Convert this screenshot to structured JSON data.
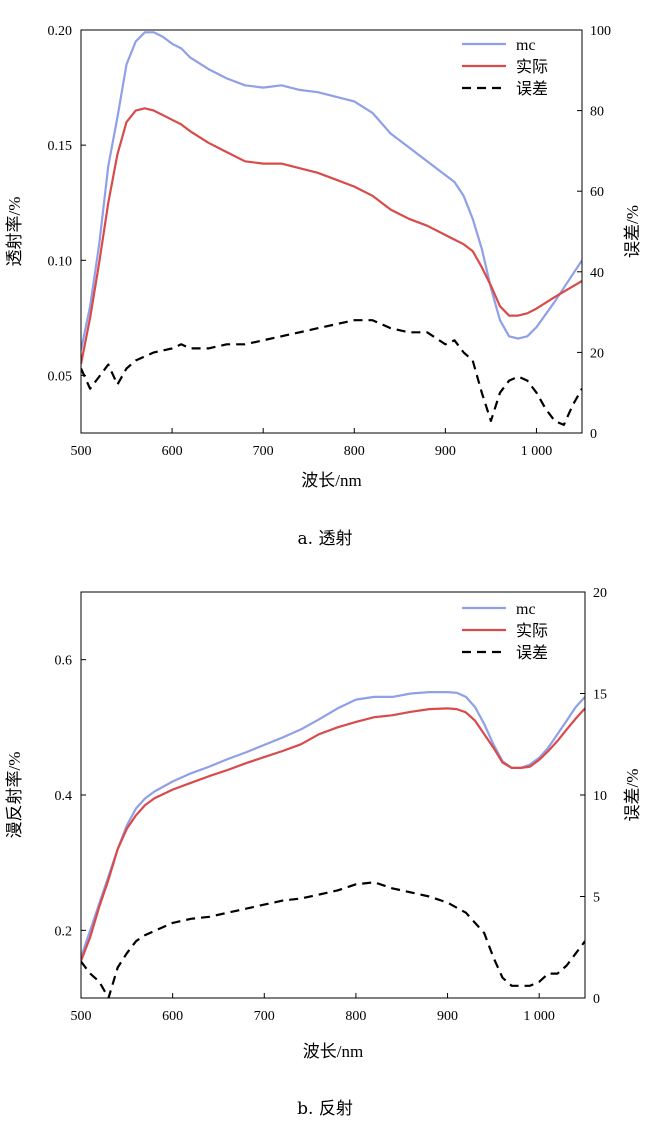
{
  "colors": {
    "mc": "#8f9fe8",
    "actual": "#d94a4a",
    "error": "#000000"
  },
  "chart_data": [
    {
      "type": "line",
      "caption": "a. 透射",
      "xlabel": "波长/nm",
      "ylabel": "透射率/%",
      "y2label": "误差/%",
      "xlim": [
        500,
        1050
      ],
      "ylim": [
        0.025,
        0.2
      ],
      "y2lim": [
        0,
        100
      ],
      "xticks": [
        500,
        600,
        700,
        800,
        900,
        1000
      ],
      "xtick_labels": [
        "500",
        "600",
        "700",
        "800",
        "900",
        "1 000"
      ],
      "yticks": [
        0.05,
        0.1,
        0.15,
        0.2
      ],
      "ytick_labels": [
        "0.05",
        "0.10",
        "0.15",
        "0.20"
      ],
      "y2ticks": [
        0,
        20,
        40,
        60,
        80,
        100
      ],
      "y2tick_labels": [
        "0",
        "20",
        "40",
        "60",
        "80",
        "100"
      ],
      "legend_position": "top-right",
      "series": [
        {
          "name": "mc",
          "axis": "left",
          "color_key": "mc",
          "style": "solid",
          "x": [
            500,
            510,
            520,
            530,
            540,
            550,
            560,
            570,
            580,
            590,
            600,
            610,
            620,
            640,
            660,
            680,
            700,
            720,
            740,
            760,
            780,
            800,
            820,
            840,
            860,
            880,
            900,
            910,
            920,
            930,
            940,
            950,
            960,
            970,
            980,
            990,
            1000,
            1020,
            1050
          ],
          "y": [
            0.061,
            0.08,
            0.107,
            0.141,
            0.162,
            0.185,
            0.195,
            0.199,
            0.199,
            0.197,
            0.194,
            0.192,
            0.188,
            0.183,
            0.179,
            0.176,
            0.175,
            0.176,
            0.174,
            0.173,
            0.171,
            0.169,
            0.164,
            0.155,
            0.149,
            0.143,
            0.137,
            0.134,
            0.128,
            0.118,
            0.105,
            0.088,
            0.074,
            0.067,
            0.066,
            0.067,
            0.071,
            0.082,
            0.1
          ]
        },
        {
          "name": "实际",
          "axis": "left",
          "color_key": "actual",
          "style": "solid",
          "x": [
            500,
            510,
            520,
            530,
            540,
            550,
            560,
            570,
            580,
            590,
            600,
            610,
            620,
            640,
            660,
            680,
            700,
            720,
            740,
            760,
            780,
            800,
            820,
            840,
            860,
            880,
            900,
            910,
            920,
            930,
            940,
            950,
            960,
            970,
            980,
            990,
            1000,
            1020,
            1050
          ],
          "y": [
            0.055,
            0.075,
            0.099,
            0.125,
            0.146,
            0.16,
            0.165,
            0.166,
            0.165,
            0.163,
            0.161,
            0.159,
            0.156,
            0.151,
            0.147,
            0.143,
            0.142,
            0.142,
            0.14,
            0.138,
            0.135,
            0.132,
            0.128,
            0.122,
            0.118,
            0.115,
            0.111,
            0.109,
            0.107,
            0.104,
            0.097,
            0.089,
            0.08,
            0.076,
            0.076,
            0.077,
            0.079,
            0.084,
            0.091
          ]
        },
        {
          "name": "误差",
          "axis": "right",
          "color_key": "error",
          "style": "dashed",
          "x": [
            500,
            510,
            520,
            530,
            540,
            550,
            560,
            570,
            580,
            600,
            610,
            620,
            640,
            660,
            680,
            700,
            720,
            740,
            760,
            780,
            800,
            820,
            840,
            860,
            880,
            900,
            910,
            920,
            930,
            940,
            950,
            960,
            970,
            980,
            990,
            1000,
            1010,
            1020,
            1030,
            1040,
            1050
          ],
          "y": [
            16,
            11,
            14,
            17,
            12,
            16,
            18,
            19,
            20,
            21,
            22,
            21,
            21,
            22,
            22,
            23,
            24,
            25,
            26,
            27,
            28,
            28,
            26,
            25,
            25,
            22,
            23,
            20,
            18,
            10,
            3,
            10,
            13,
            14,
            13,
            10,
            6,
            3,
            2,
            7,
            11
          ]
        }
      ]
    },
    {
      "type": "line",
      "caption": "b. 反射",
      "xlabel": "波长/nm",
      "ylabel": "漫反射率/%",
      "y2label": "误差/%",
      "xlim": [
        500,
        1050
      ],
      "ylim": [
        0.1,
        0.7
      ],
      "y2lim": [
        0,
        20
      ],
      "xticks": [
        500,
        600,
        700,
        800,
        900,
        1000
      ],
      "xtick_labels": [
        "500",
        "600",
        "700",
        "800",
        "900",
        "1 000"
      ],
      "yticks": [
        0.2,
        0.4,
        0.6
      ],
      "ytick_labels": [
        "0.2",
        "0.4",
        "0.6"
      ],
      "y2ticks": [
        0,
        5,
        10,
        15,
        20
      ],
      "y2tick_labels": [
        "0",
        "5",
        "10",
        "15",
        "20"
      ],
      "legend_position": "top-right",
      "series": [
        {
          "name": "mc",
          "axis": "left",
          "color_key": "mc",
          "style": "solid",
          "x": [
            500,
            510,
            520,
            530,
            540,
            550,
            560,
            570,
            580,
            600,
            620,
            640,
            660,
            680,
            700,
            720,
            740,
            760,
            780,
            800,
            820,
            840,
            860,
            880,
            900,
            910,
            920,
            930,
            940,
            950,
            960,
            970,
            980,
            990,
            1000,
            1010,
            1020,
            1030,
            1040,
            1050
          ],
          "y": [
            0.16,
            0.2,
            0.24,
            0.28,
            0.32,
            0.355,
            0.38,
            0.395,
            0.405,
            0.42,
            0.432,
            0.442,
            0.453,
            0.463,
            0.474,
            0.485,
            0.497,
            0.512,
            0.528,
            0.541,
            0.545,
            0.545,
            0.55,
            0.552,
            0.552,
            0.551,
            0.545,
            0.53,
            0.505,
            0.475,
            0.45,
            0.44,
            0.44,
            0.445,
            0.455,
            0.47,
            0.49,
            0.51,
            0.53,
            0.545
          ]
        },
        {
          "name": "实际",
          "axis": "left",
          "color_key": "actual",
          "style": "solid",
          "x": [
            500,
            510,
            520,
            530,
            540,
            550,
            560,
            570,
            580,
            600,
            620,
            640,
            660,
            680,
            700,
            720,
            740,
            760,
            780,
            800,
            820,
            840,
            860,
            880,
            900,
            910,
            920,
            930,
            940,
            950,
            960,
            970,
            980,
            990,
            1000,
            1010,
            1020,
            1030,
            1040,
            1050
          ],
          "y": [
            0.155,
            0.19,
            0.235,
            0.275,
            0.32,
            0.35,
            0.37,
            0.385,
            0.395,
            0.408,
            0.418,
            0.428,
            0.437,
            0.447,
            0.456,
            0.465,
            0.475,
            0.49,
            0.5,
            0.508,
            0.515,
            0.518,
            0.523,
            0.527,
            0.528,
            0.527,
            0.522,
            0.51,
            0.49,
            0.47,
            0.448,
            0.44,
            0.44,
            0.442,
            0.452,
            0.465,
            0.48,
            0.497,
            0.513,
            0.528
          ]
        },
        {
          "name": "误差",
          "axis": "right",
          "color_key": "error",
          "style": "dashed",
          "x": [
            500,
            510,
            520,
            530,
            540,
            550,
            560,
            570,
            580,
            600,
            620,
            640,
            660,
            680,
            700,
            720,
            740,
            760,
            780,
            800,
            820,
            840,
            860,
            880,
            900,
            920,
            940,
            950,
            960,
            970,
            980,
            990,
            1000,
            1010,
            1020,
            1030,
            1040,
            1050
          ],
          "y": [
            1.8,
            1.2,
            0.8,
            0,
            1.5,
            2.2,
            2.8,
            3.1,
            3.3,
            3.7,
            3.9,
            4.0,
            4.2,
            4.4,
            4.6,
            4.8,
            4.9,
            5.1,
            5.3,
            5.6,
            5.7,
            5.4,
            5.2,
            5.0,
            4.7,
            4.2,
            3.2,
            2.0,
            1.0,
            0.6,
            0.6,
            0.6,
            0.8,
            1.2,
            1.2,
            1.6,
            2.2,
            2.8
          ]
        }
      ]
    }
  ]
}
